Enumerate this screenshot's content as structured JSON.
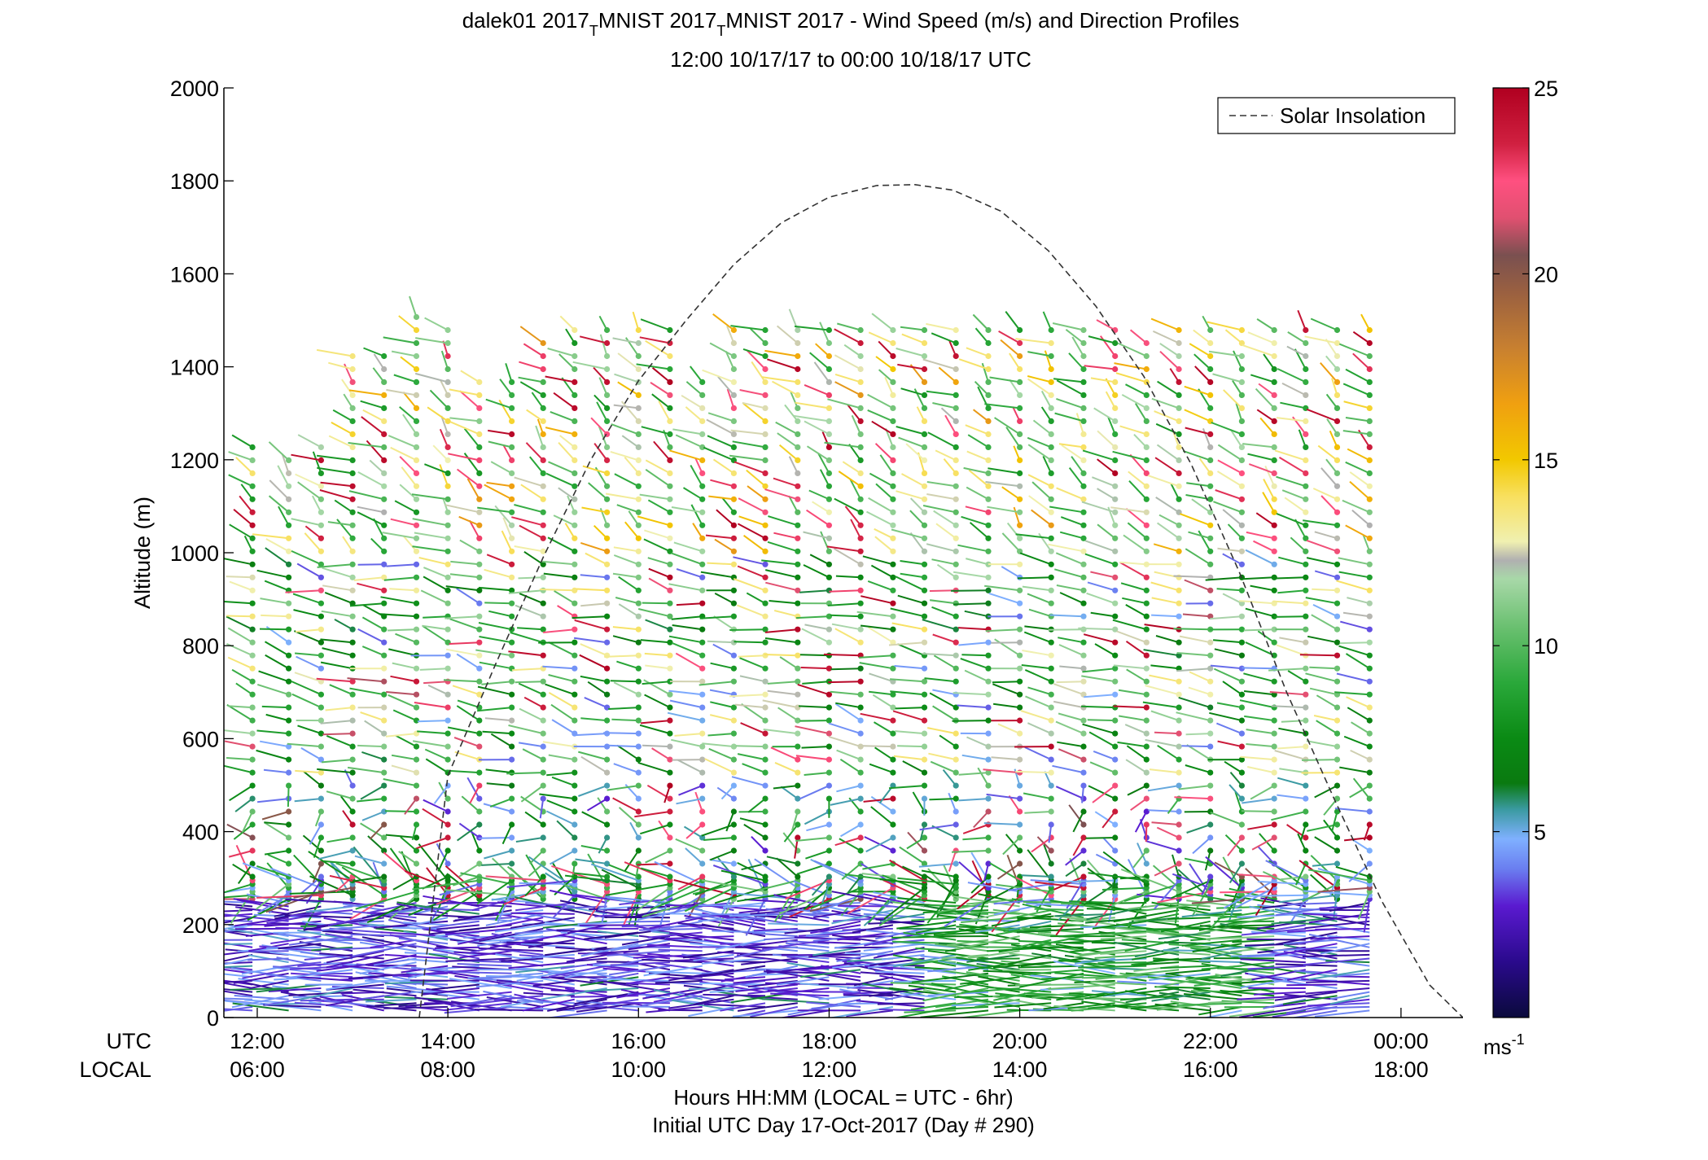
{
  "chart_data": {
    "type": "wind-barb-profile",
    "title_line1_prefix": "dalek01 2017",
    "title_subscript": "T",
    "title_line1_mid": "MNIST 2017",
    "title_line1_suffix": "MNIST 2017 - Wind Speed (m/s) and Direction Profiles",
    "title_line2": "12:00 10/17/17 to 00:00 10/18/17  UTC",
    "ylabel": "Altitude (m)",
    "ylim": [
      0,
      2000
    ],
    "yticks": [
      "0",
      "200",
      "400",
      "600",
      "800",
      "1000",
      "1200",
      "1400",
      "1600",
      "1800",
      "2000"
    ],
    "xlim_hours": [
      11.65,
      24.65
    ],
    "x_ticks": [
      {
        "h": 12,
        "utc": "12:00",
        "local": "06:00"
      },
      {
        "h": 14,
        "utc": "14:00",
        "local": "08:00"
      },
      {
        "h": 16,
        "utc": "16:00",
        "local": "10:00"
      },
      {
        "h": 18,
        "utc": "18:00",
        "local": "12:00"
      },
      {
        "h": 20,
        "utc": "20:00",
        "local": "14:00"
      },
      {
        "h": 22,
        "utc": "22:00",
        "local": "16:00"
      },
      {
        "h": 24,
        "utc": "00:00",
        "local": "18:00"
      }
    ],
    "x_row_label_utc": "UTC",
    "x_row_label_local": "LOCAL",
    "xlabel_line1": "Hours HH:MM  (LOCAL = UTC - 6hr)",
    "xlabel_line2": "Initial UTC Day 17-Oct-2017 (Day # 290)",
    "legend": {
      "label": "Solar Insolation",
      "line_style": "dashed",
      "position": "top-right"
    },
    "solar_insolation_altitude_equiv": [
      [
        13.7,
        0
      ],
      [
        14.0,
        520
      ],
      [
        14.5,
        760
      ],
      [
        15.0,
        990
      ],
      [
        15.5,
        1200
      ],
      [
        16.0,
        1370
      ],
      [
        16.5,
        1500
      ],
      [
        17.0,
        1620
      ],
      [
        17.5,
        1710
      ],
      [
        18.0,
        1765
      ],
      [
        18.5,
        1790
      ],
      [
        18.9,
        1792
      ],
      [
        19.3,
        1780
      ],
      [
        19.8,
        1735
      ],
      [
        20.3,
        1650
      ],
      [
        20.8,
        1530
      ],
      [
        21.3,
        1380
      ],
      [
        21.8,
        1190
      ],
      [
        22.3,
        960
      ],
      [
        22.8,
        700
      ],
      [
        23.3,
        470
      ],
      [
        23.8,
        250
      ],
      [
        24.3,
        70
      ],
      [
        24.65,
        0
      ]
    ],
    "profile_times_hours": [
      11.95,
      12.33,
      12.67,
      13.0,
      13.33,
      13.67,
      14.0,
      14.33,
      14.67,
      15.0,
      15.33,
      15.67,
      16.0,
      16.33,
      16.67,
      17.0,
      17.33,
      17.67,
      18.0,
      18.33,
      18.67,
      19.0,
      19.33,
      19.67,
      20.0,
      20.33,
      20.67,
      21.0,
      21.33,
      21.67,
      22.0,
      22.33,
      22.67,
      23.0,
      23.33,
      23.67
    ],
    "max_altitude_m": [
      1230,
      1200,
      1230,
      1430,
      1440,
      1520,
      1480,
      1380,
      1380,
      1460,
      1480,
      1500,
      1480,
      1480,
      1380,
      1480,
      1500,
      1500,
      1480,
      1500,
      1500,
      1500,
      1480,
      1500,
      1500,
      1500,
      1480,
      1480,
      1470,
      1480,
      1500,
      1500,
      1500,
      1500,
      1500,
      1490
    ],
    "speed_by_altitude_band": [
      {
        "from_m": 0,
        "to_m": 250,
        "typical_speed_ms": 3,
        "typical_direction": "W to E"
      },
      {
        "from_m": 250,
        "to_m": 500,
        "typical_speed_ms": 6,
        "typical_direction": "variable"
      },
      {
        "from_m": 500,
        "to_m": 1000,
        "typical_speed_ms": 9,
        "typical_direction": "W to E"
      },
      {
        "from_m": 1000,
        "to_m": 1500,
        "typical_speed_ms": 11,
        "typical_direction": "NW to SE"
      }
    ],
    "colorbar": {
      "min": 0,
      "max": 25,
      "ticks": [
        "5",
        "10",
        "15",
        "20",
        "25"
      ],
      "unit_base": "ms",
      "unit_exp": "-1",
      "stops": [
        {
          "v": 0,
          "c": "#0a0a3c"
        },
        {
          "v": 1.5,
          "c": "#2a0a8c"
        },
        {
          "v": 3,
          "c": "#5a1ad0"
        },
        {
          "v": 4,
          "c": "#6a7ef0"
        },
        {
          "v": 4.8,
          "c": "#7fb0ff"
        },
        {
          "v": 5.6,
          "c": "#3a9aa0"
        },
        {
          "v": 6.3,
          "c": "#0a7a10"
        },
        {
          "v": 7.5,
          "c": "#0a8a14"
        },
        {
          "v": 9,
          "c": "#2aa83a"
        },
        {
          "v": 10.5,
          "c": "#6ac070"
        },
        {
          "v": 11.8,
          "c": "#a8d8a8"
        },
        {
          "v": 12.3,
          "c": "#b0b0b0"
        },
        {
          "v": 12.8,
          "c": "#f0f0b0"
        },
        {
          "v": 14,
          "c": "#f8e060"
        },
        {
          "v": 15,
          "c": "#f2c800"
        },
        {
          "v": 16.5,
          "c": "#f0a010"
        },
        {
          "v": 18,
          "c": "#c88030"
        },
        {
          "v": 19.5,
          "c": "#9a6040"
        },
        {
          "v": 20.5,
          "c": "#7a5050"
        },
        {
          "v": 21.5,
          "c": "#e05070"
        },
        {
          "v": 22.5,
          "c": "#ff5080"
        },
        {
          "v": 23.5,
          "c": "#d02040"
        },
        {
          "v": 25,
          "c": "#b00020"
        }
      ]
    }
  }
}
